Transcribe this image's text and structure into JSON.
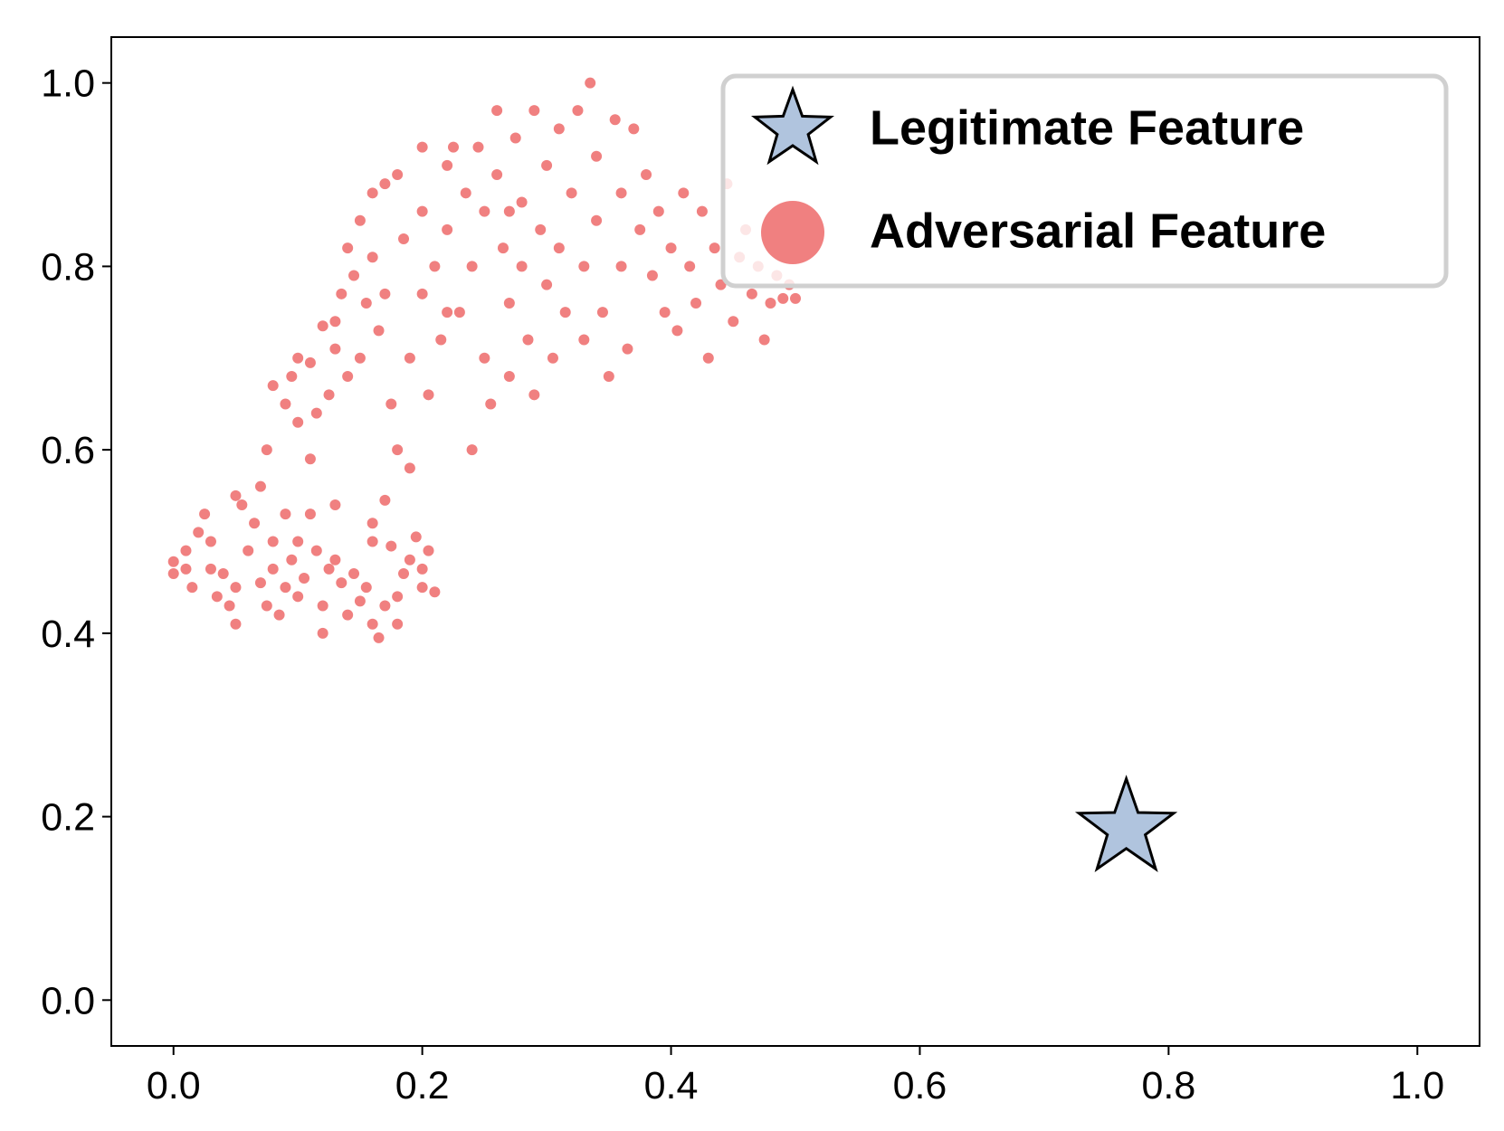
{
  "chart_data": {
    "type": "scatter",
    "xlim": [
      -0.05,
      1.05
    ],
    "ylim": [
      -0.05,
      1.05
    ],
    "xticks": [
      {
        "value": 0,
        "label": "0.0"
      },
      0.2,
      0.4,
      0.6,
      0.8,
      {
        "value": 1,
        "label": "1.0"
      }
    ],
    "yticks": [
      {
        "value": 0,
        "label": "0.0"
      },
      0.2,
      0.4,
      0.6,
      0.8,
      {
        "value": 1,
        "label": "1.0"
      }
    ],
    "grid": false,
    "legend": "upper right",
    "series": [
      {
        "name": "Legitimate Feature",
        "color": "#b0c4de",
        "marker": "star",
        "x": [
          0.766
        ],
        "values": [
          0.187
        ]
      },
      {
        "name": "Adversarial Feature",
        "color": "#f08080",
        "marker": "circle",
        "x": [
          0.0,
          0.0,
          0.01,
          0.01,
          0.015,
          0.02,
          0.025,
          0.03,
          0.03,
          0.035,
          0.04,
          0.045,
          0.05,
          0.05,
          0.05,
          0.055,
          0.06,
          0.065,
          0.07,
          0.07,
          0.075,
          0.075,
          0.08,
          0.08,
          0.085,
          0.09,
          0.09,
          0.095,
          0.1,
          0.1,
          0.105,
          0.11,
          0.11,
          0.115,
          0.12,
          0.12,
          0.125,
          0.13,
          0.13,
          0.135,
          0.14,
          0.15,
          0.155,
          0.16,
          0.16,
          0.165,
          0.17,
          0.17,
          0.175,
          0.18,
          0.18,
          0.185,
          0.19,
          0.195,
          0.2,
          0.2,
          0.205,
          0.21,
          0.16,
          0.145,
          0.08,
          0.09,
          0.095,
          0.1,
          0.1,
          0.11,
          0.115,
          0.12,
          0.125,
          0.13,
          0.13,
          0.135,
          0.14,
          0.14,
          0.145,
          0.15,
          0.15,
          0.155,
          0.16,
          0.16,
          0.165,
          0.17,
          0.17,
          0.175,
          0.18,
          0.18,
          0.185,
          0.19,
          0.19,
          0.2,
          0.2,
          0.2,
          0.205,
          0.21,
          0.215,
          0.22,
          0.22,
          0.225,
          0.23,
          0.235,
          0.24,
          0.24,
          0.245,
          0.25,
          0.25,
          0.255,
          0.26,
          0.26,
          0.265,
          0.27,
          0.27,
          0.275,
          0.28,
          0.28,
          0.285,
          0.29,
          0.29,
          0.295,
          0.3,
          0.3,
          0.305,
          0.31,
          0.31,
          0.315,
          0.32,
          0.325,
          0.33,
          0.33,
          0.335,
          0.34,
          0.34,
          0.345,
          0.35,
          0.355,
          0.36,
          0.36,
          0.365,
          0.37,
          0.375,
          0.38,
          0.385,
          0.39,
          0.395,
          0.4,
          0.405,
          0.41,
          0.415,
          0.42,
          0.425,
          0.43,
          0.435,
          0.44,
          0.445,
          0.45,
          0.455,
          0.46,
          0.465,
          0.47,
          0.475,
          0.48,
          0.485,
          0.49,
          0.495,
          0.5,
          0.22,
          0.27
        ],
        "values": [
          0.465,
          0.478,
          0.49,
          0.47,
          0.45,
          0.51,
          0.53,
          0.47,
          0.5,
          0.44,
          0.465,
          0.43,
          0.41,
          0.45,
          0.55,
          0.54,
          0.49,
          0.52,
          0.455,
          0.56,
          0.6,
          0.43,
          0.5,
          0.47,
          0.42,
          0.45,
          0.53,
          0.48,
          0.5,
          0.44,
          0.46,
          0.53,
          0.59,
          0.49,
          0.43,
          0.4,
          0.47,
          0.54,
          0.48,
          0.455,
          0.42,
          0.435,
          0.45,
          0.41,
          0.5,
          0.395,
          0.43,
          0.545,
          0.495,
          0.44,
          0.41,
          0.465,
          0.48,
          0.505,
          0.47,
          0.45,
          0.49,
          0.445,
          0.52,
          0.465,
          0.67,
          0.65,
          0.68,
          0.63,
          0.7,
          0.695,
          0.64,
          0.735,
          0.66,
          0.74,
          0.71,
          0.77,
          0.82,
          0.68,
          0.79,
          0.85,
          0.7,
          0.76,
          0.88,
          0.81,
          0.73,
          0.89,
          0.77,
          0.65,
          0.9,
          0.6,
          0.83,
          0.7,
          0.58,
          0.93,
          0.86,
          0.77,
          0.66,
          0.8,
          0.72,
          0.91,
          0.84,
          0.93,
          0.75,
          0.88,
          0.8,
          0.6,
          0.93,
          0.86,
          0.7,
          0.65,
          0.97,
          0.9,
          0.82,
          0.76,
          0.68,
          0.94,
          0.87,
          0.8,
          0.72,
          0.97,
          0.66,
          0.84,
          0.91,
          0.78,
          0.7,
          0.95,
          0.82,
          0.75,
          0.88,
          0.97,
          0.8,
          0.72,
          1.0,
          0.92,
          0.85,
          0.75,
          0.68,
          0.96,
          0.88,
          0.8,
          0.71,
          0.95,
          0.84,
          0.9,
          0.79,
          0.86,
          0.75,
          0.82,
          0.73,
          0.88,
          0.8,
          0.76,
          0.86,
          0.7,
          0.82,
          0.78,
          0.89,
          0.74,
          0.81,
          0.84,
          0.77,
          0.8,
          0.72,
          0.76,
          0.79,
          0.765,
          0.78,
          0.765,
          0.75,
          0.86
        ]
      }
    ]
  }
}
